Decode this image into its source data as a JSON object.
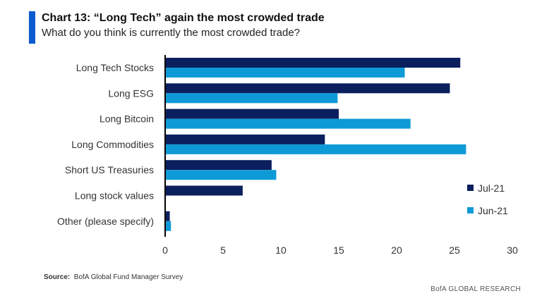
{
  "header": {
    "title": "Chart 13: “Long Tech” again the most crowded trade",
    "subtitle": "What do you think is currently the most crowded trade?"
  },
  "footer": {
    "source_label": "Source:",
    "source_text": "BofA Global Fund Manager Survey",
    "brand": "BofA GLOBAL RESEARCH"
  },
  "chart_data": {
    "type": "bar",
    "orientation": "horizontal",
    "title": "Chart 13: “Long Tech” again the most crowded trade",
    "subtitle": "What do you think is currently the most crowded trade?",
    "categories": [
      "Long Tech Stocks",
      "Long ESG",
      "Long Bitcoin",
      "Long Commodities",
      "Short US Treasuries",
      "Long stock values",
      "Other (please specify)"
    ],
    "series": [
      {
        "name": "Jul-21",
        "color": "#0b1f5e",
        "values": [
          25.5,
          24.6,
          15.0,
          13.8,
          9.2,
          6.7,
          0.4
        ]
      },
      {
        "name": "Jun-21",
        "color": "#0e9ad7",
        "values": [
          20.7,
          14.9,
          21.2,
          26.0,
          9.6,
          0,
          0.5
        ]
      }
    ],
    "xlim": [
      0,
      30
    ],
    "xticks": [
      0,
      5,
      10,
      15,
      20,
      25,
      30
    ],
    "legend": "right",
    "grid": false
  }
}
